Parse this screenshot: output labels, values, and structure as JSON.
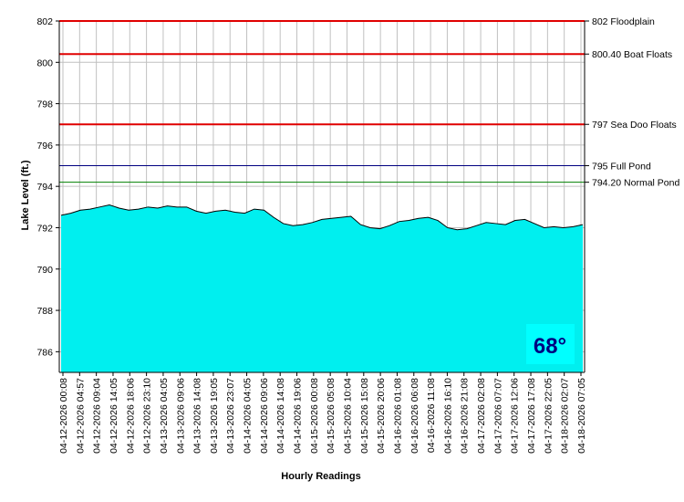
{
  "chart_data": {
    "type": "area",
    "title": "",
    "xlabel": "Hourly Readings",
    "ylabel": "Lake Level (ft.)",
    "ylim": [
      785,
      802
    ],
    "y_ticks": [
      786,
      788,
      790,
      792,
      794,
      796,
      798,
      800,
      802
    ],
    "grid": true,
    "legend": "none",
    "x_tick_labels": [
      "04-12-2026 00:08",
      "04-12-2026 04:57",
      "04-12-2026 09:04",
      "04-12-2026 14:05",
      "04-12-2026 18:06",
      "04-12-2026 23:10",
      "04-13-2026 04:05",
      "04-13-2026 09:06",
      "04-13-2026 14:08",
      "04-13-2026 19:05",
      "04-13-2026 23:07",
      "04-14-2026 04:05",
      "04-14-2026 09:06",
      "04-14-2026 14:08",
      "04-14-2026 19:06",
      "04-15-2026 00:08",
      "04-15-2026 05:08",
      "04-15-2026 10:04",
      "04-15-2026 15:08",
      "04-15-2026 20:06",
      "04-16-2026 01:08",
      "04-16-2026 06:08",
      "04-16-2026 11:08",
      "04-16-2026 16:10",
      "04-16-2026 21:08",
      "04-17-2026 02:08",
      "04-17-2026 07:07",
      "04-17-2026 12:06",
      "04-17-2026 17:08",
      "04-17-2026 22:05",
      "04-18-2026 02:07",
      "04-18-2026 07:05"
    ],
    "series": [
      {
        "values": [
          792.6,
          792.7,
          792.85,
          792.9,
          793.0,
          793.1,
          792.95,
          792.85,
          792.9,
          793.0,
          792.95,
          793.05,
          793.0,
          793.0,
          792.8,
          792.7,
          792.8,
          792.85,
          792.75,
          792.7,
          792.9,
          792.85,
          792.5,
          792.2,
          792.1,
          792.15,
          792.25,
          792.4,
          792.45,
          792.5,
          792.55,
          792.15,
          792.0,
          791.95,
          792.1,
          792.3,
          792.35,
          792.45,
          792.5,
          792.35,
          792.0,
          791.9,
          791.95,
          792.1,
          792.25,
          792.2,
          792.15,
          792.35,
          792.4,
          792.2,
          792.0,
          792.05,
          792.0,
          792.05,
          792.15
        ]
      }
    ],
    "reference_lines": [
      {
        "value": 802,
        "label": "802 Floodplain",
        "color": "#e00000"
      },
      {
        "value": 800.4,
        "label": "800.40 Boat Floats",
        "color": "#e00000"
      },
      {
        "value": 797,
        "label": "797 Sea Doo Floats",
        "color": "#e00000"
      },
      {
        "value": 795,
        "label": "795 Full Pond",
        "color": "#000080"
      },
      {
        "value": 794.2,
        "label": "794.20 Normal Pond",
        "color": "#008000"
      }
    ],
    "area_color": "#00ffff",
    "grid_color": "#c0c0c0"
  },
  "temperature_badge": {
    "text": "68°",
    "background": "#00ffff",
    "color": "#000080"
  }
}
